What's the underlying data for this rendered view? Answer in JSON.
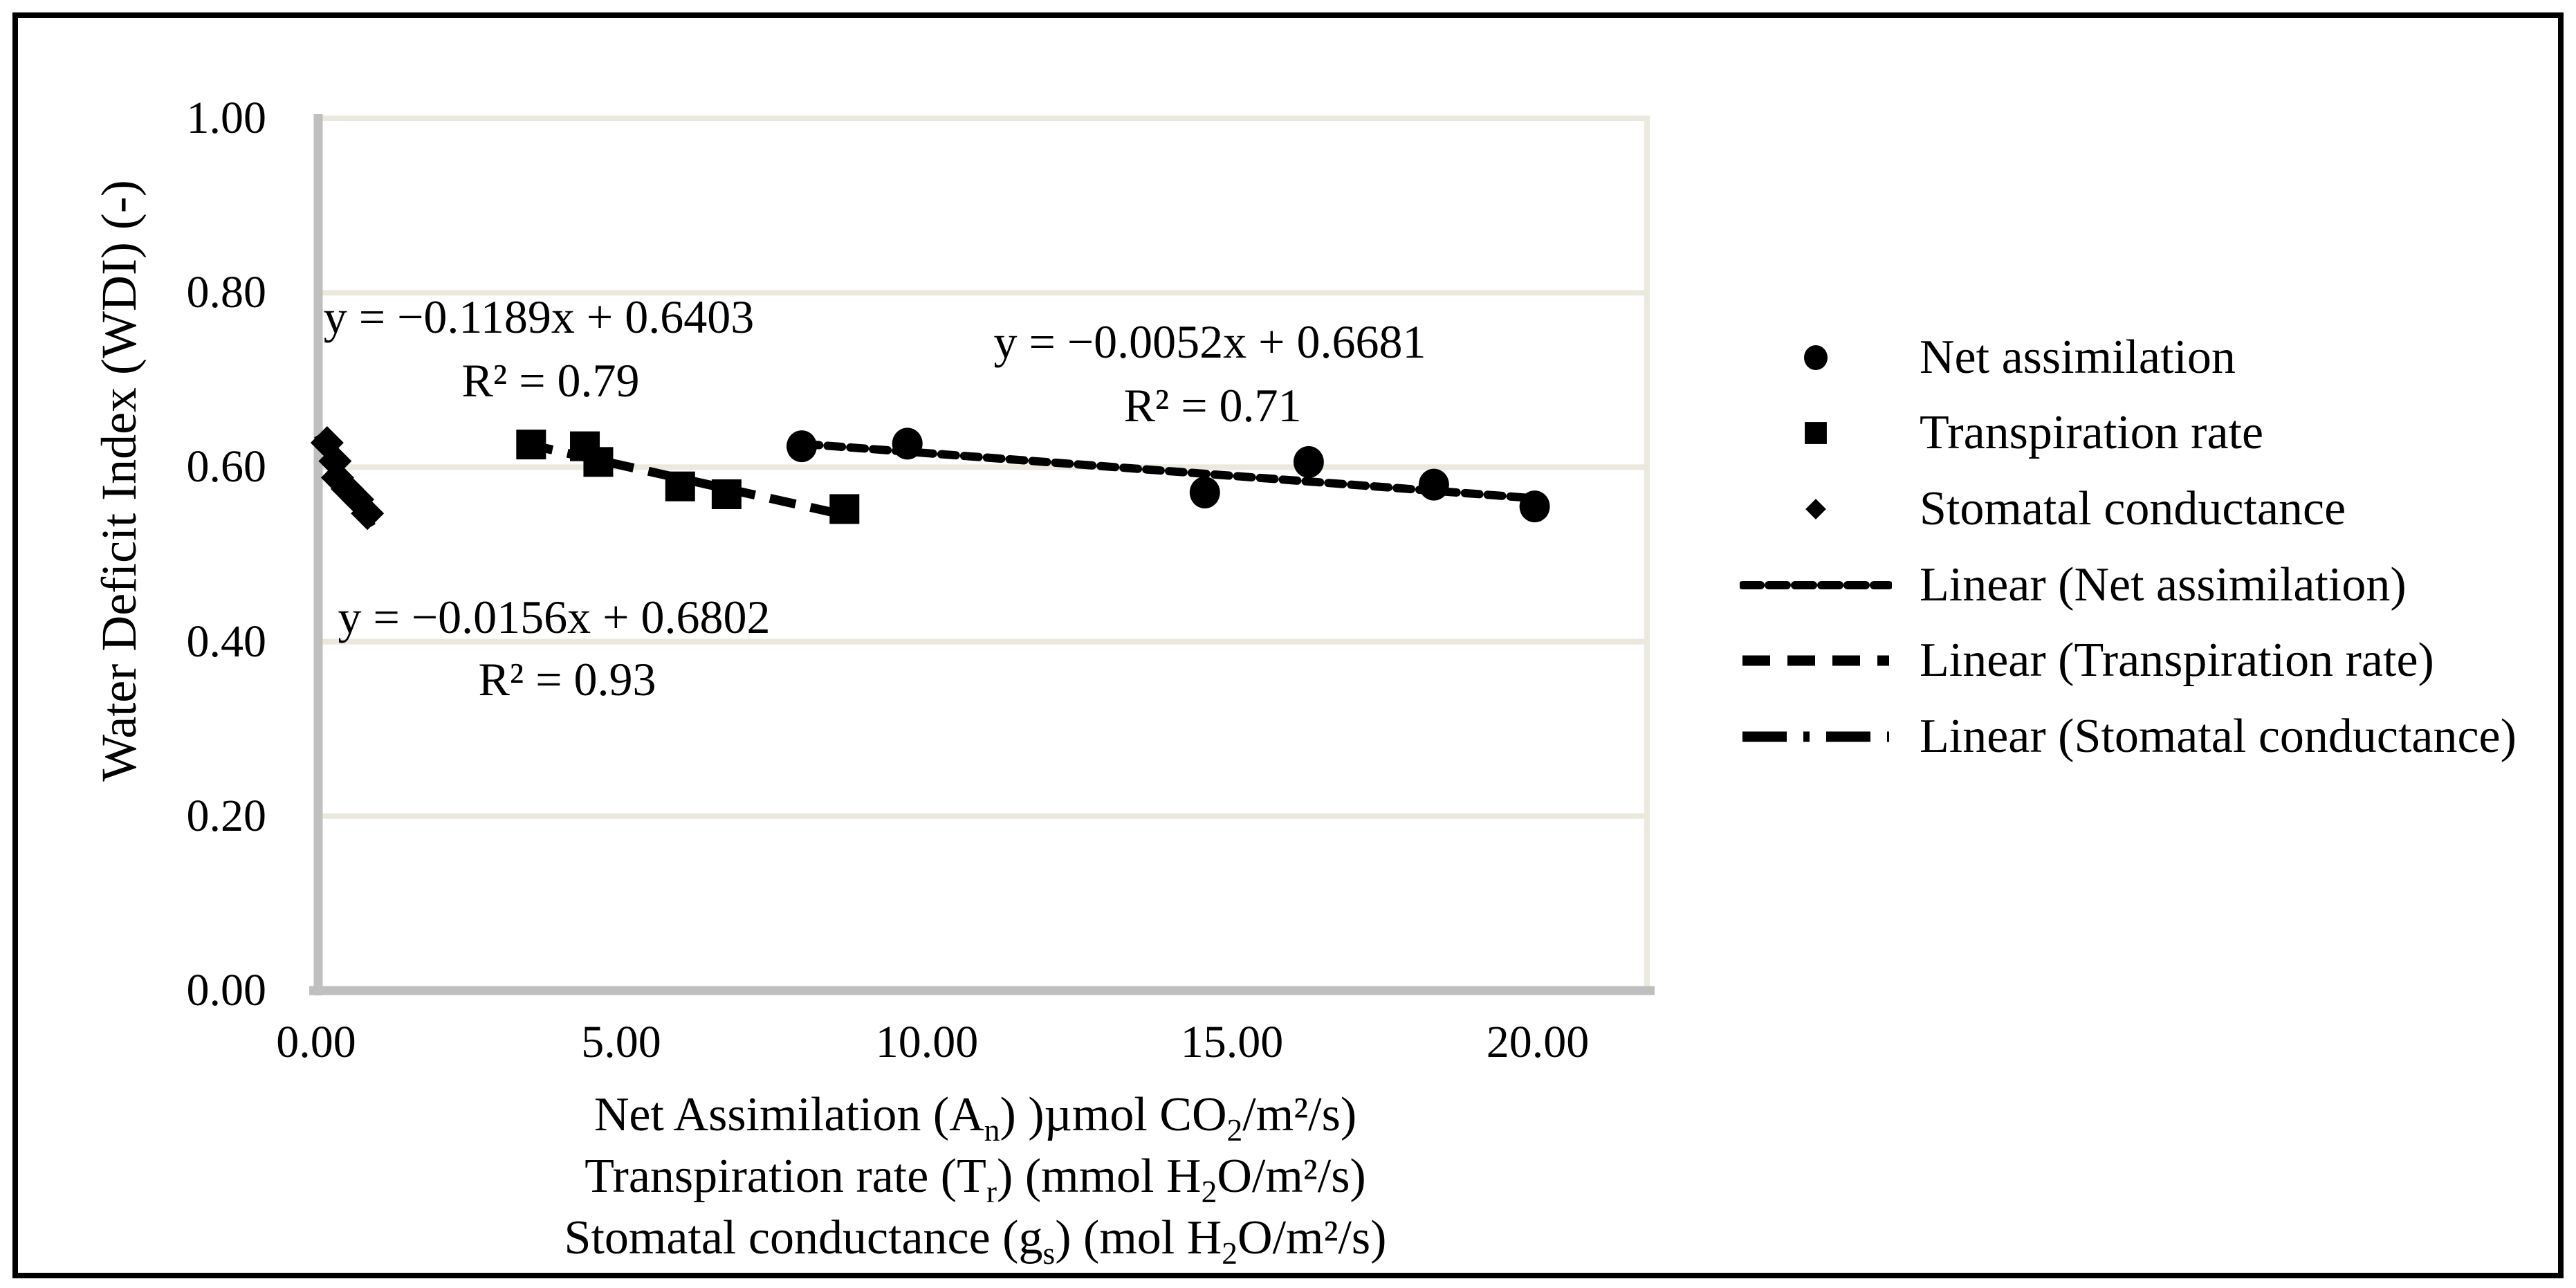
{
  "figure": {
    "type": "scientific scatter chart with linear trendlines",
    "background": "#ffffff",
    "border_color": "#000000"
  },
  "colors": {
    "series": "#000000",
    "gridline": "#ebe8dd",
    "axis_line": "#bfbfbf",
    "text": "#000000"
  },
  "chart_data": {
    "type": "scatter",
    "title": "",
    "grid": "horizontal only",
    "legend_position": "right outside",
    "y_axis": {
      "title": "Water Deficit Index (WDI) (-)",
      "ticks": [
        "1.00",
        "0.80",
        "0.60",
        "0.40",
        "0.20",
        "0.00"
      ],
      "tick_values": [
        1.0,
        0.8,
        0.6,
        0.4,
        0.2,
        0.0
      ],
      "range": [
        0,
        1
      ]
    },
    "x_axis": {
      "ticks": [
        "0.00",
        "5.00",
        "10.00",
        "15.00",
        "20.00"
      ],
      "tick_values": [
        0,
        5,
        10,
        15,
        20
      ],
      "range": [
        0,
        21.8
      ],
      "title_lines": [
        {
          "text": "Net Assimilation (An) )µmol CO2/m²/s)",
          "parts": [
            [
              "t",
              "Net Assimilation (A"
            ],
            [
              "sub",
              "n"
            ],
            [
              "t",
              ") )µmol CO"
            ],
            [
              "sub",
              "2"
            ],
            [
              "t",
              "/m²/s)"
            ]
          ]
        },
        {
          "text": "Transpiration rate (Tr) (mmol H2O/m²/s)",
          "parts": [
            [
              "t",
              "Transpiration rate (T"
            ],
            [
              "sub",
              "r"
            ],
            [
              "t",
              ") (mmol H"
            ],
            [
              "sub",
              "2"
            ],
            [
              "t",
              "O/m²/s)"
            ]
          ]
        },
        {
          "text": "Stomatal conductance (gs) (mol H2O/m²/s)",
          "parts": [
            [
              "t",
              "Stomatal conductance (g"
            ],
            [
              "sub",
              "s"
            ],
            [
              "t",
              ") (mol H"
            ],
            [
              "sub",
              "2"
            ],
            [
              "t",
              "O/m²/s)"
            ]
          ]
        }
      ]
    },
    "series": [
      {
        "name": "Net assimilation",
        "marker": "circle",
        "color": "#000000",
        "points": [
          [
            7.95,
            0.624
          ],
          [
            9.68,
            0.627
          ],
          [
            14.55,
            0.571
          ],
          [
            16.25,
            0.606
          ],
          [
            18.3,
            0.58
          ],
          [
            19.95,
            0.555
          ]
        ],
        "trendline": {
          "label": "Linear (Net assimilation)",
          "dash": "fine",
          "equation": "y = −0.0052x + 0.6681",
          "r2": "R² = 0.71",
          "slope": -0.0052,
          "intercept": 0.6681,
          "r2_value": 0.71,
          "x_start": 8.0,
          "x_end": 19.95
        }
      },
      {
        "name": "Transpiration rate",
        "marker": "square",
        "color": "#000000",
        "points": [
          [
            3.52,
            0.626
          ],
          [
            4.4,
            0.624
          ],
          [
            4.62,
            0.606
          ],
          [
            5.96,
            0.578
          ],
          [
            6.72,
            0.569
          ],
          [
            8.65,
            0.552
          ]
        ],
        "trendline": {
          "label": "Linear (Transpiration rate)",
          "dash": "medium",
          "equation": "y = −0.0156x + 0.6802",
          "r2": "R² = 0.93",
          "slope": -0.0156,
          "intercept": 0.6802,
          "r2_value": 0.93,
          "x_start": 3.45,
          "x_end": 8.8
        }
      },
      {
        "name": "Stomatal conductance",
        "marker": "diamond",
        "color": "#000000",
        "points": [
          [
            0.18,
            0.628
          ],
          [
            0.31,
            0.607
          ],
          [
            0.35,
            0.588
          ],
          [
            0.51,
            0.575
          ],
          [
            0.68,
            0.563
          ],
          [
            0.84,
            0.547
          ]
        ],
        "trendline": {
          "label": "Linear (Stomatal conductance)",
          "dash": "dashdot",
          "equation": "y = −0.1189x + 0.6403",
          "r2": "R² = 0.79",
          "slope": -0.1189,
          "intercept": 0.6403,
          "r2_value": 0.79,
          "x_start": 0.03,
          "x_end": 1.0
        }
      }
    ],
    "legend": {
      "items": [
        {
          "label": "Net assimilation",
          "sample": "circle"
        },
        {
          "label": "Transpiration rate",
          "sample": "square"
        },
        {
          "label": "Stomatal conductance",
          "sample": "diamond"
        },
        {
          "label": "Linear (Net assimilation)",
          "sample": "fine-line"
        },
        {
          "label": "Linear (Transpiration rate)",
          "sample": "medium-line"
        },
        {
          "label": "Linear (Stomatal conductance)",
          "sample": "dashdot-line"
        }
      ]
    }
  }
}
